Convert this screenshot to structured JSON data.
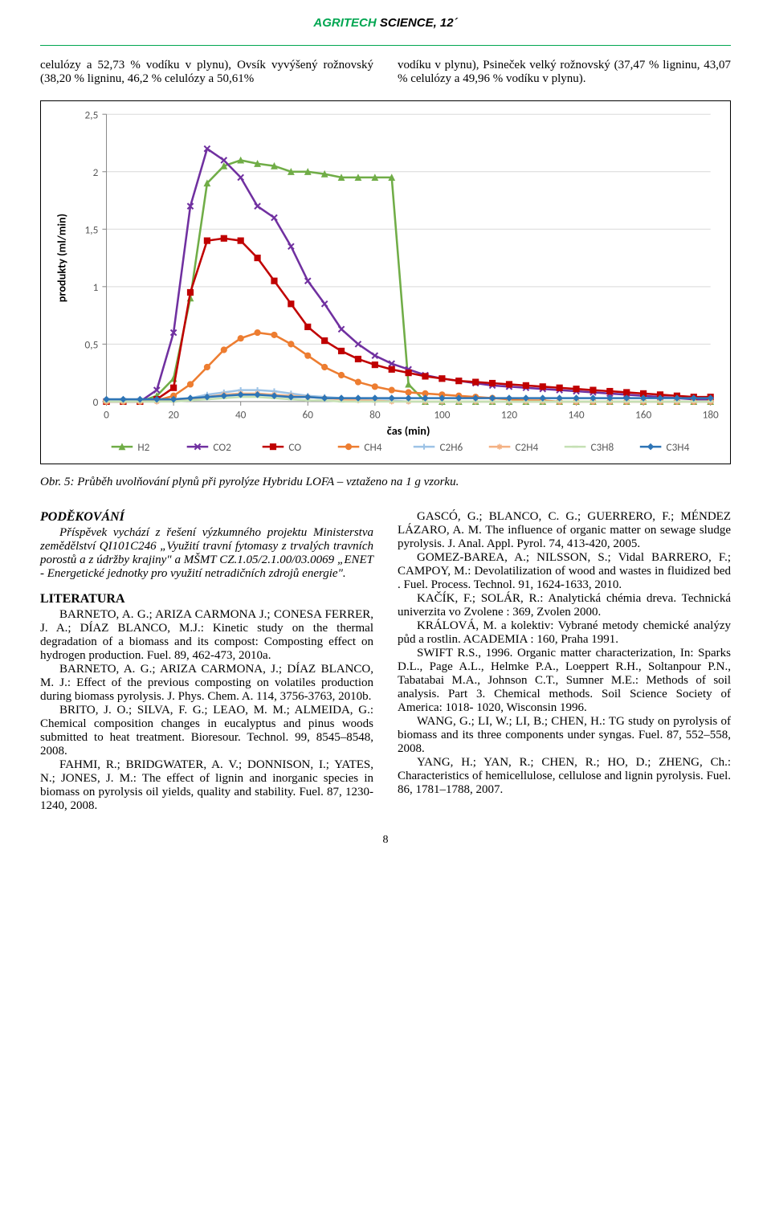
{
  "journal": {
    "green": "AGRITECH",
    "black": " SCIENCE, 12´"
  },
  "intro": {
    "left": "celulózy a 52,73 % vodíku v plynu), Ovsík vyvýšený rožnovský (38,20 % ligninu, 46,2 % celulózy a 50,61%",
    "right": "vodíku v plynu), Psineček velký rožnovský (37,47 % ligninu, 43,07 % celulózy a 49,96 % vodíku v plynu)."
  },
  "chart": {
    "xlabel": "čas (min)",
    "ylabel": "produkty (ml/min)",
    "xlim": [
      0,
      180
    ],
    "xtick_step": 20,
    "ylim": [
      0,
      2.5
    ],
    "ytick_step": 0.5,
    "ytick_labels": [
      "0",
      "0,5",
      "1",
      "1,5",
      "2",
      "2,5"
    ],
    "bg": "#ffffff",
    "grid_color": "#d9d9d9",
    "axis_color": "#888888",
    "tick_color": "#888888",
    "label_fontsize": 14,
    "tick_fontsize": 13,
    "legend_fontsize": 13,
    "line_width": 2.5,
    "marker_size": 7,
    "series": [
      {
        "name": "H2",
        "color": "#70ad47",
        "marker": "triangle",
        "y": [
          0,
          0,
          0,
          0.05,
          0.2,
          0.9,
          1.9,
          2.05,
          2.1,
          2.07,
          2.05,
          2.0,
          2.0,
          1.98,
          1.95,
          1.95,
          1.95,
          1.95,
          0.15,
          0,
          0,
          0,
          0,
          0,
          0,
          0,
          0,
          0,
          0,
          0,
          0,
          0,
          0,
          0,
          0,
          0,
          0
        ]
      },
      {
        "name": "CO2",
        "color": "#7030a0",
        "marker": "x",
        "y": [
          0,
          0,
          0,
          0.1,
          0.6,
          1.7,
          2.2,
          2.1,
          1.95,
          1.7,
          1.6,
          1.35,
          1.05,
          0.85,
          0.63,
          0.5,
          0.4,
          0.33,
          0.28,
          0.23,
          0.2,
          0.18,
          0.16,
          0.14,
          0.13,
          0.12,
          0.11,
          0.1,
          0.09,
          0.08,
          0.07,
          0.06,
          0.05,
          0.04,
          0.03,
          0.02,
          0.02
        ]
      },
      {
        "name": "CO",
        "color": "#c00000",
        "marker": "square",
        "y": [
          0,
          0,
          0,
          0.02,
          0.12,
          0.95,
          1.4,
          1.42,
          1.4,
          1.25,
          1.05,
          0.85,
          0.65,
          0.53,
          0.44,
          0.37,
          0.32,
          0.28,
          0.25,
          0.22,
          0.2,
          0.18,
          0.17,
          0.16,
          0.15,
          0.14,
          0.13,
          0.12,
          0.11,
          0.1,
          0.09,
          0.08,
          0.07,
          0.06,
          0.05,
          0.04,
          0.04
        ]
      },
      {
        "name": "CH4",
        "color": "#ed7d31",
        "marker": "circle",
        "y": [
          0,
          0,
          0,
          0.01,
          0.05,
          0.15,
          0.3,
          0.45,
          0.55,
          0.6,
          0.58,
          0.5,
          0.4,
          0.3,
          0.23,
          0.17,
          0.13,
          0.1,
          0.08,
          0.07,
          0.06,
          0.05,
          0.04,
          0.03,
          0.02,
          0.01,
          0.01,
          0,
          0,
          0,
          0,
          0,
          0,
          0,
          0,
          0,
          0
        ]
      },
      {
        "name": "C2H6",
        "color": "#9dc3e6",
        "marker": "plus",
        "y": [
          0,
          0,
          0,
          0,
          0.01,
          0.03,
          0.06,
          0.08,
          0.1,
          0.1,
          0.09,
          0.07,
          0.05,
          0.04,
          0.03,
          0.02,
          0.01,
          0.01,
          0,
          0,
          0,
          0,
          0,
          0,
          0,
          0,
          0,
          0,
          0,
          0,
          0,
          0,
          0,
          0,
          0,
          0,
          0
        ]
      },
      {
        "name": "C2H4",
        "color": "#f4b183",
        "marker": "star",
        "y": [
          0,
          0,
          0,
          0,
          0.01,
          0.02,
          0.04,
          0.06,
          0.07,
          0.07,
          0.06,
          0.05,
          0.04,
          0.03,
          0.02,
          0.01,
          0.01,
          0,
          0,
          0,
          0,
          0,
          0,
          0,
          0,
          0,
          0,
          0,
          0,
          0,
          0,
          0,
          0,
          0,
          0,
          0,
          0
        ]
      },
      {
        "name": "C3H8",
        "color": "#c5e0b4",
        "marker": "dash",
        "y": [
          0,
          0,
          0,
          0,
          0,
          0.01,
          0.02,
          0.03,
          0.04,
          0.04,
          0.03,
          0.02,
          0.01,
          0.01,
          0,
          0,
          0,
          0,
          0,
          0,
          0,
          0,
          0,
          0,
          0,
          0,
          0,
          0,
          0,
          0,
          0,
          0,
          0,
          0,
          0,
          0,
          0
        ]
      },
      {
        "name": "C3H4",
        "color": "#2e75b6",
        "marker": "diamond",
        "y": [
          0.02,
          0.02,
          0.02,
          0.02,
          0.02,
          0.03,
          0.04,
          0.05,
          0.06,
          0.06,
          0.05,
          0.04,
          0.04,
          0.03,
          0.03,
          0.03,
          0.03,
          0.03,
          0.03,
          0.03,
          0.03,
          0.03,
          0.03,
          0.03,
          0.03,
          0.03,
          0.03,
          0.03,
          0.03,
          0.03,
          0.03,
          0.03,
          0.03,
          0.03,
          0.03,
          0.03,
          0.03
        ]
      }
    ],
    "x_step": 5
  },
  "fig_caption": "Obr. 5: Průběh uvolňování plynů při pyrolýze Hybridu LOFA – vztaženo na 1 g vzorku.",
  "ack": {
    "heading": "PODĚKOVÁNÍ",
    "body": "Příspěvek vychází z řešení výzkumného projektu Ministerstva zemědělství QI101C246 „Využití travní fytomasy z trvalých travních porostů a z údržby krajiny\" a MŠMT CZ.1.05/2.1.00/03.0069 „ENET - Energetické jednotky pro využití netradičních zdrojů energie\"."
  },
  "lit_heading": "LITERATURA",
  "refs_left": [
    "BARNETO, A. G.; ARIZA CARMONA J.; CONESA FERRER, J. A.; DÍAZ BLANCO, M.J.: Kinetic study on the thermal degradation of a biomass and its compost: Composting effect on hydrogen production. Fuel. 89, 462-473, 2010a.",
    "BARNETO, A. G.; ARIZA CARMONA, J.; DÍAZ BLANCO, M. J.: Effect of the previous composting on volatiles production during biomass pyrolysis. J. Phys. Chem. A. 114, 3756-3763, 2010b.",
    "BRITO, J. O.; SILVA, F. G.; LEAO, M. M.; ALMEIDA, G.: Chemical composition changes in eucalyptus and pinus woods submitted to heat treatment. Bioresour. Technol. 99, 8545–8548, 2008.",
    "FAHMI, R.; BRIDGWATER, A. V.; DONNISON, I.; YATES, N.; JONES, J. M.: The effect of lignin and inorganic species in biomass on pyrolysis oil yields, quality and stability. Fuel. 87, 1230-1240, 2008."
  ],
  "refs_right": [
    "GASCÓ, G.; BLANCO, C. G.; GUERRERO, F.; MÉNDEZ LÁZARO, A. M. The influence of organic matter on sewage sludge pyrolysis. J. Anal. Appl. Pyrol. 74, 413-420, 2005.",
    "GOMEZ-BAREA, A.; NILSSON, S.; Vidal BARRERO, F.; CAMPOY, M.: Devolatilization of wood and wastes in fluidized bed . Fuel. Process. Technol. 91, 1624-1633, 2010.",
    "KAČÍK, F.; SOLÁR, R.: Analytická chémia dreva. Technická univerzita vo Zvolene : 369, Zvolen 2000.",
    "KRÁLOVÁ, M. a kolektiv: Vybrané metody chemické analýzy půd a rostlin. ACADEMIA : 160, Praha 1991.",
    "SWIFT R.S., 1996. Organic matter characterization, In: Sparks D.L., Page A.L., Helmke P.A., Loeppert R.H., Soltanpour P.N., Tabatabai M.A., Johnson C.T., Sumner M.E.: Methods of soil analysis. Part 3. Chemical methods. Soil Science Society of America: 1018- 1020, Wisconsin 1996.",
    "WANG, G.; LI, W.; LI, B.; CHEN, H.: TG study on pyrolysis of biomass and its three components under syngas. Fuel. 87, 552–558, 2008.",
    "YANG, H.; YAN, R.; CHEN, R.; HO, D.; ZHENG, Ch.: Characteristics of hemicellulose, cellulose and lignin pyrolysis. Fuel. 86, 1781–1788, 2007."
  ],
  "page_number": "8"
}
